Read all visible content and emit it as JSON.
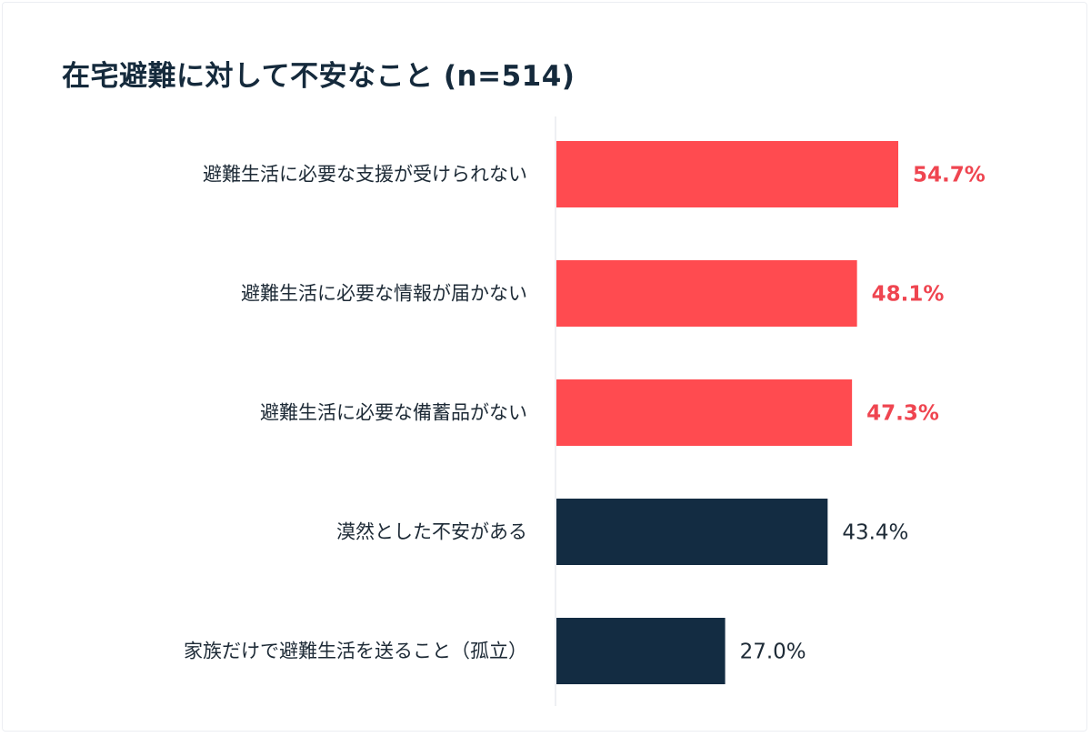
{
  "chart_data": {
    "type": "bar",
    "orientation": "horizontal",
    "title": "在宅避難に対して不安なこと (n=514)",
    "categories": [
      "避難生活に必要な支援が受けられない",
      "避難生活に必要な情報が届かない",
      "避難生活に必要な備蓄品がない",
      "漠然とした不安がある",
      "家族だけで避難生活を送ること（孤立）"
    ],
    "values": [
      54.7,
      48.1,
      47.3,
      43.4,
      27.0
    ],
    "labels": [
      "54.7%",
      "48.1%",
      "47.3%",
      "43.4%",
      "27.0%"
    ],
    "highlight": [
      true,
      true,
      true,
      false,
      false
    ],
    "colors": {
      "highlight": "#ff4b50",
      "normal": "#132c42",
      "highlight_label": "#ef4550",
      "normal_label": "#1d2a36"
    },
    "xlim": [
      0,
      60
    ],
    "grid": false,
    "legend": "none"
  }
}
